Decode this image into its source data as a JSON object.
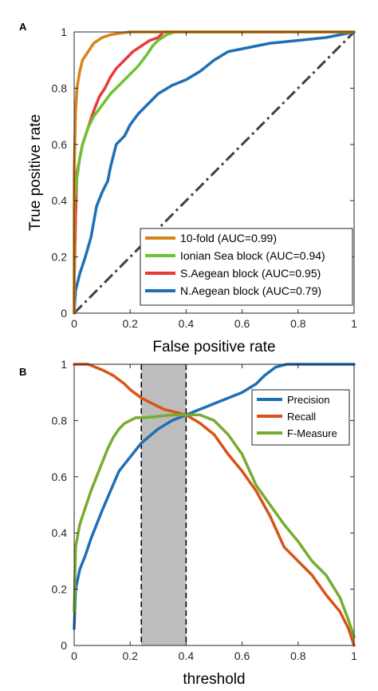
{
  "chart_data": [
    {
      "panel_label": "A",
      "type": "line",
      "xlabel": "False positive rate",
      "ylabel": "True positive rate",
      "xlim": [
        0,
        1
      ],
      "ylim": [
        0,
        1
      ],
      "xticks": [
        0,
        0.2,
        0.4,
        0.6,
        0.8,
        1
      ],
      "yticks": [
        0,
        0.2,
        0.4,
        0.6,
        0.8,
        1
      ],
      "xtick_labels": [
        "0",
        "0.2",
        "0.4",
        "0.6",
        "0.8",
        "1"
      ],
      "ytick_labels": [
        "0",
        "0.2",
        "0.4",
        "0.6",
        "0.8",
        "1"
      ],
      "grid": false,
      "legend_placement": "bottom-right",
      "reference_line": {
        "x": [
          0,
          1
        ],
        "y": [
          0,
          1
        ],
        "style": "dash-dot",
        "color": "#404040"
      },
      "series": [
        {
          "name": "10-fold (AUC=0.99)",
          "color": "#D9821A",
          "x": [
            0,
            0,
            0.005,
            0.01,
            0.02,
            0.03,
            0.05,
            0.07,
            0.1,
            0.13,
            0.16,
            0.2,
            0.25,
            0.3,
            1
          ],
          "y": [
            0,
            0.5,
            0.72,
            0.8,
            0.86,
            0.9,
            0.93,
            0.96,
            0.98,
            0.99,
            0.995,
            1,
            1,
            1,
            1
          ]
        },
        {
          "name": "Ionian Sea block (AUC=0.94)",
          "color": "#6CC234",
          "x": [
            0,
            0,
            0.01,
            0.02,
            0.03,
            0.05,
            0.07,
            0.1,
            0.13,
            0.17,
            0.2,
            0.23,
            0.26,
            0.28,
            0.3,
            0.33,
            0.36,
            0.38,
            1
          ],
          "y": [
            0,
            0.38,
            0.48,
            0.55,
            0.6,
            0.66,
            0.7,
            0.74,
            0.78,
            0.82,
            0.85,
            0.88,
            0.92,
            0.95,
            0.97,
            0.99,
            1,
            1,
            1
          ]
        },
        {
          "name": "S.Aegean block (AUC=0.95)",
          "color": "#E8393A",
          "x": [
            0,
            0,
            0.005,
            0.01,
            0.02,
            0.03,
            0.05,
            0.07,
            0.09,
            0.11,
            0.13,
            0.15,
            0.18,
            0.21,
            0.24,
            0.27,
            0.3,
            0.32,
            0.35,
            1
          ],
          "y": [
            0,
            0.08,
            0.35,
            0.5,
            0.55,
            0.6,
            0.66,
            0.72,
            0.77,
            0.8,
            0.84,
            0.87,
            0.9,
            0.93,
            0.95,
            0.97,
            0.98,
            1,
            1,
            1
          ]
        },
        {
          "name": "N.Aegean block (AUC=0.79)",
          "color": "#1F6FB5",
          "x": [
            0,
            0.005,
            0.01,
            0.02,
            0.04,
            0.06,
            0.08,
            0.1,
            0.12,
            0.13,
            0.15,
            0.18,
            0.2,
            0.23,
            0.26,
            0.3,
            0.35,
            0.4,
            0.45,
            0.5,
            0.55,
            0.6,
            0.65,
            0.7,
            0.8,
            0.9,
            1
          ],
          "y": [
            0,
            0.08,
            0.1,
            0.14,
            0.2,
            0.27,
            0.38,
            0.43,
            0.47,
            0.52,
            0.6,
            0.63,
            0.67,
            0.71,
            0.74,
            0.78,
            0.81,
            0.83,
            0.86,
            0.9,
            0.93,
            0.94,
            0.95,
            0.96,
            0.97,
            0.98,
            1
          ]
        }
      ]
    },
    {
      "panel_label": "B",
      "type": "line",
      "xlabel": "threshold",
      "ylabel": "",
      "xlim": [
        0,
        1
      ],
      "ylim": [
        0,
        1
      ],
      "xticks": [
        0,
        0.2,
        0.4,
        0.6,
        0.8,
        1
      ],
      "yticks": [
        0,
        0.2,
        0.4,
        0.6,
        0.8,
        1
      ],
      "xtick_labels": [
        "0",
        "0.2",
        "0.4",
        "0.6",
        "0.8",
        "1"
      ],
      "ytick_labels": [
        "0",
        "0.2",
        "0.4",
        "0.6",
        "0.8",
        "1"
      ],
      "grid": false,
      "legend_placement": "top-right",
      "shaded_region": {
        "x": [
          0.24,
          0.4
        ],
        "color": "#BDBDBD",
        "border_style": "dashed"
      },
      "series": [
        {
          "name": "Precision",
          "color": "#1F6FB5",
          "x": [
            0,
            0.005,
            0.02,
            0.04,
            0.06,
            0.08,
            0.1,
            0.13,
            0.16,
            0.2,
            0.24,
            0.3,
            0.35,
            0.4,
            0.45,
            0.5,
            0.55,
            0.6,
            0.65,
            0.68,
            0.72,
            0.76,
            0.8,
            0.9,
            1
          ],
          "y": [
            0.06,
            0.2,
            0.27,
            0.32,
            0.38,
            0.43,
            0.48,
            0.55,
            0.62,
            0.67,
            0.72,
            0.77,
            0.8,
            0.82,
            0.84,
            0.86,
            0.88,
            0.9,
            0.93,
            0.96,
            0.99,
            1,
            1,
            1,
            1
          ]
        },
        {
          "name": "Recall",
          "color": "#D95319",
          "x": [
            0,
            0.05,
            0.1,
            0.14,
            0.18,
            0.2,
            0.24,
            0.28,
            0.32,
            0.36,
            0.4,
            0.45,
            0.5,
            0.55,
            0.6,
            0.65,
            0.7,
            0.75,
            0.8,
            0.85,
            0.9,
            0.95,
            0.98,
            1
          ],
          "y": [
            1,
            1,
            0.98,
            0.96,
            0.93,
            0.91,
            0.88,
            0.86,
            0.84,
            0.83,
            0.82,
            0.79,
            0.75,
            0.68,
            0.62,
            0.55,
            0.46,
            0.35,
            0.3,
            0.25,
            0.18,
            0.12,
            0.06,
            0.0
          ]
        },
        {
          "name": "F-Measure",
          "color": "#77AC30",
          "x": [
            0,
            0.005,
            0.02,
            0.04,
            0.06,
            0.08,
            0.1,
            0.12,
            0.14,
            0.16,
            0.18,
            0.2,
            0.22,
            0.25,
            0.3,
            0.35,
            0.4,
            0.45,
            0.5,
            0.55,
            0.6,
            0.65,
            0.7,
            0.75,
            0.8,
            0.85,
            0.9,
            0.95,
            0.98,
            1
          ],
          "y": [
            0.12,
            0.35,
            0.43,
            0.49,
            0.55,
            0.6,
            0.65,
            0.7,
            0.74,
            0.77,
            0.79,
            0.8,
            0.81,
            0.81,
            0.815,
            0.82,
            0.82,
            0.82,
            0.8,
            0.75,
            0.68,
            0.57,
            0.5,
            0.43,
            0.37,
            0.3,
            0.25,
            0.17,
            0.09,
            0.03
          ]
        }
      ]
    }
  ]
}
